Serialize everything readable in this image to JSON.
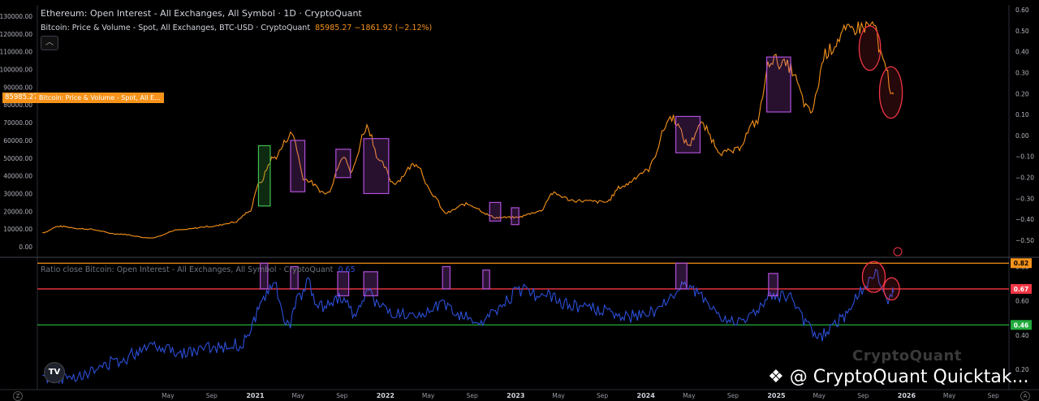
{
  "legend": {
    "title": "Ethereum: Open Interest - All Exchanges, All Symbol · 1D · CryptoQuant",
    "series2_label": "Bitcoin: Price & Volume - Spot, All Exchanges, BTC-USD · CryptoQuant",
    "series2_value": "85985.27  −1861.92 (−2.12%)",
    "series3_label": "Ratio close Bitcoin: Open Interest - All Exchanges, All Symbol · CryptoQuant",
    "series3_value": "0.65"
  },
  "price_badge": "85985.27",
  "series_badge": "Bitcoin: Price & Volume - Spot, All E...",
  "collapse_icon": "chevron-up-icon",
  "tv_logo": "TV",
  "watermark": "CryptoQuant",
  "attribution": "@ CryptoQuant Quicktak...",
  "corner_left": "Z",
  "corner_right": "A",
  "colors": {
    "price": "#f7931a",
    "ratio": "#2c4fd8",
    "top_line": "#f7931a",
    "mid_line": "#f23645",
    "low_line": "#22ab3c",
    "box": "#b04fd8",
    "green_box": "#3fbf4f"
  },
  "chart_data": [
    {
      "type": "line",
      "series": [
        {
          "name": "Bitcoin: Price & Volume - Spot, All Exchanges, BTC-USD",
          "x": [
            "2019-05-15",
            "2019-07-01",
            "2019-09-15",
            "2019-12-15",
            "2020-03-13",
            "2020-06-01",
            "2020-09-01",
            "2020-11-01",
            "2020-12-15",
            "2021-01-10",
            "2021-02-20",
            "2021-04-14",
            "2021-05-20",
            "2021-07-20",
            "2021-09-07",
            "2021-09-25",
            "2021-11-10",
            "2021-12-20",
            "2022-01-24",
            "2022-03-28",
            "2022-05-15",
            "2022-06-18",
            "2022-08-15",
            "2022-11-09",
            "2023-01-01",
            "2023-03-10",
            "2023-04-14",
            "2023-06-15",
            "2023-09-11",
            "2023-10-25",
            "2023-12-31",
            "2024-03-14",
            "2024-05-01",
            "2024-06-01",
            "2024-08-05",
            "2024-09-06",
            "2024-11-05",
            "2024-12-17",
            "2025-02-01",
            "2025-04-07",
            "2025-05-22",
            "2025-07-14",
            "2025-08-14",
            "2025-10-06",
            "2025-10-15",
            "2025-11-05",
            "2025-11-21",
            "2025-11-25"
          ],
          "values": [
            8000,
            11500,
            10000,
            7200,
            5000,
            9500,
            11500,
            13700,
            19500,
            35000,
            50000,
            63500,
            38000,
            30000,
            52000,
            42000,
            67500,
            47000,
            36000,
            47000,
            29000,
            19000,
            24000,
            16500,
            16500,
            20000,
            30000,
            26000,
            25200,
            34000,
            42500,
            73000,
            57500,
            69000,
            53000,
            54000,
            70000,
            106000,
            102000,
            76000,
            110000,
            121000,
            123500,
            125000,
            110000,
            100000,
            85000,
            86000
          ]
        }
      ],
      "xlabel": "",
      "ylabel": "",
      "x_ticks": [
        "May",
        "Sep",
        "2021",
        "May",
        "Sep",
        "2022",
        "May",
        "Sep",
        "2023",
        "May",
        "Sep",
        "2024",
        "May",
        "Sep",
        "2025",
        "May",
        "Sep",
        "2026",
        "May",
        "Sep"
      ],
      "left_ticks": [
        "130000.00",
        "120000.00",
        "110000.00",
        "100000.00",
        "90000.00",
        "80000.00",
        "70000.00",
        "60000.00",
        "50000.00",
        "40000.00",
        "30000.00",
        "20000.00",
        "10000.00",
        "0.00"
      ],
      "ylim": [
        0,
        130000
      ],
      "right_ticks": [
        "0.60",
        "0.50",
        "0.40",
        "0.30",
        "0.20",
        "0.10",
        "0.00",
        "−0.10",
        "−0.20",
        "−0.30",
        "−0.40",
        "−0.50"
      ],
      "right_ylim": [
        -0.5,
        0.6
      ],
      "highlight_boxes": [
        {
          "x": [
            "2021-01-10",
            "2021-02-12"
          ],
          "y": [
            23000,
            57000
          ],
          "color": "green"
        },
        {
          "x": [
            "2021-04-10",
            "2021-05-20"
          ],
          "y": [
            31000,
            60000
          ],
          "color": "purple"
        },
        {
          "x": [
            "2021-08-15",
            "2021-09-25"
          ],
          "y": [
            39000,
            55000
          ],
          "color": "purple"
        },
        {
          "x": [
            "2021-11-01",
            "2022-01-10"
          ],
          "y": [
            30000,
            61000
          ],
          "color": "purple"
        },
        {
          "x": [
            "2022-10-20",
            "2022-11-20"
          ],
          "y": [
            14500,
            25000
          ],
          "color": "purple"
        },
        {
          "x": [
            "2022-12-20",
            "2023-01-10"
          ],
          "y": [
            12500,
            22000
          ],
          "color": "purple"
        },
        {
          "x": [
            "2024-03-25",
            "2024-06-01"
          ],
          "y": [
            53000,
            73500
          ],
          "color": "purple"
        },
        {
          "x": [
            "2024-12-05",
            "2025-02-10"
          ],
          "y": [
            76000,
            107000
          ],
          "color": "purple"
        }
      ],
      "circles": [
        {
          "x": "2025-09-20",
          "y": 112000,
          "rx_days": 30,
          "ry": 12500
        },
        {
          "x": "2025-11-18",
          "y": 87000,
          "rx_days": 32,
          "ry": 14500
        }
      ]
    },
    {
      "type": "line",
      "series": [
        {
          "name": "Ratio close Bitcoin: Open Interest - All Exchanges, All Symbol",
          "x": [
            "2019-05-15",
            "2019-07-15",
            "2019-09-15",
            "2019-12-15",
            "2020-03-15",
            "2020-06-15",
            "2020-09-15",
            "2020-11-15",
            "2020-12-15",
            "2021-01-15",
            "2021-02-20",
            "2021-04-01",
            "2021-05-01",
            "2021-05-25",
            "2021-07-01",
            "2021-09-07",
            "2021-10-01",
            "2021-11-15",
            "2021-12-20",
            "2022-02-01",
            "2022-04-01",
            "2022-06-01",
            "2022-08-01",
            "2022-10-01",
            "2022-11-10",
            "2023-01-15",
            "2023-03-15",
            "2023-06-01",
            "2023-08-15",
            "2023-11-01",
            "2024-01-15",
            "2024-03-15",
            "2024-04-15",
            "2024-06-01",
            "2024-08-15",
            "2024-10-15",
            "2024-12-15",
            "2025-02-01",
            "2025-04-01",
            "2025-05-01",
            "2025-06-01",
            "2025-07-15",
            "2025-08-20",
            "2025-10-06",
            "2025-10-25",
            "2025-11-10",
            "2025-11-21",
            "2025-11-25"
          ],
          "values": [
            0.16,
            0.15,
            0.18,
            0.25,
            0.35,
            0.3,
            0.33,
            0.34,
            0.4,
            0.58,
            0.7,
            0.45,
            0.6,
            0.7,
            0.57,
            0.62,
            0.53,
            0.65,
            0.56,
            0.52,
            0.49,
            0.58,
            0.52,
            0.47,
            0.55,
            0.67,
            0.63,
            0.58,
            0.55,
            0.5,
            0.53,
            0.62,
            0.7,
            0.63,
            0.48,
            0.5,
            0.62,
            0.63,
            0.45,
            0.38,
            0.44,
            0.52,
            0.65,
            0.75,
            0.69,
            0.59,
            0.63,
            0.65
          ]
        }
      ],
      "xlabel": "",
      "ylabel": "",
      "right_ticks": [
        "0.80",
        "0.60",
        "0.40",
        "0.20"
      ],
      "ylim": [
        0.13,
        0.84
      ],
      "reference_lines": [
        {
          "value": 0.82,
          "label": "0.82",
          "color": "orange"
        },
        {
          "value": 0.67,
          "label": "0.67",
          "color": "red"
        },
        {
          "value": 0.46,
          "label": "0.46",
          "color": "green"
        }
      ],
      "highlight_boxes": [
        {
          "x": [
            "2021-01-15",
            "2021-02-05"
          ],
          "y": [
            0.67,
            0.82
          ]
        },
        {
          "x": [
            "2021-04-10",
            "2021-05-01"
          ],
          "y": [
            0.67,
            0.8
          ]
        },
        {
          "x": [
            "2021-08-20",
            "2021-09-20"
          ],
          "y": [
            0.63,
            0.77
          ]
        },
        {
          "x": [
            "2021-11-01",
            "2021-12-10"
          ],
          "y": [
            0.63,
            0.77
          ]
        },
        {
          "x": [
            "2022-06-10",
            "2022-07-01"
          ],
          "y": [
            0.67,
            0.8
          ]
        },
        {
          "x": [
            "2022-10-01",
            "2022-10-20"
          ],
          "y": [
            0.67,
            0.78
          ]
        },
        {
          "x": [
            "2024-03-25",
            "2024-04-25"
          ],
          "y": [
            0.67,
            0.82
          ]
        },
        {
          "x": [
            "2024-12-10",
            "2025-01-05"
          ],
          "y": [
            0.63,
            0.76
          ]
        }
      ],
      "circles": [
        {
          "x": "2025-10-01",
          "y": 0.74,
          "rx_days": 32,
          "ry": 0.09
        },
        {
          "x": "2025-11-20",
          "y": 0.67,
          "rx_days": 22,
          "ry": 0.065
        }
      ]
    }
  ]
}
